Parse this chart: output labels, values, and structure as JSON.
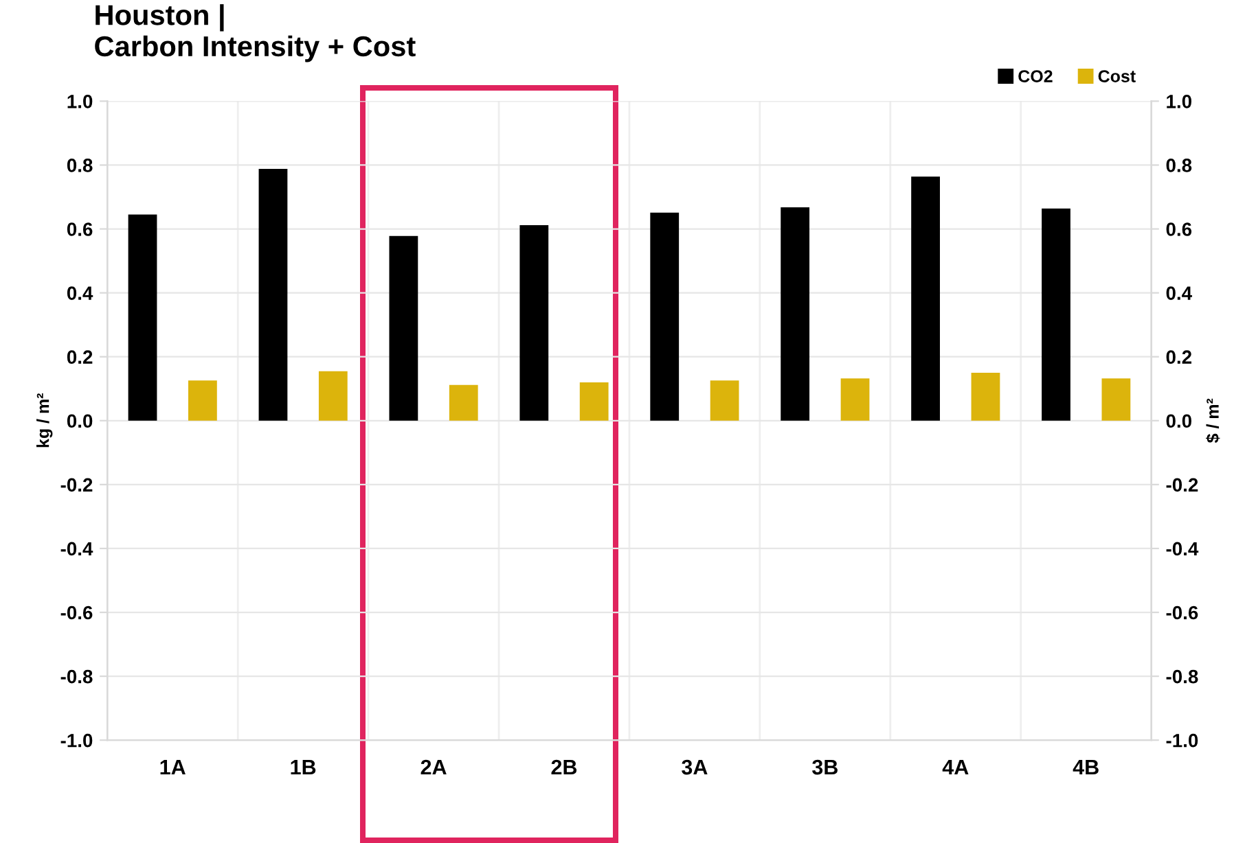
{
  "chart_data": {
    "type": "bar",
    "title": "Houston |\nCarbon Intensity + Cost",
    "ylabel": "kg / m²",
    "y2label": "$ / m²",
    "categories": [
      "1A",
      "1B",
      "2A",
      "2B",
      "3A",
      "3B",
      "4A",
      "4B"
    ],
    "series": [
      {
        "name": "CO2",
        "color": "#000000",
        "values": [
          0.645,
          0.788,
          0.578,
          0.612,
          0.651,
          0.668,
          0.764,
          0.664
        ]
      },
      {
        "name": "Cost",
        "color": "#dcb40c",
        "axis": "y2",
        "values": [
          0.126,
          0.155,
          0.112,
          0.12,
          0.126,
          0.132,
          0.15,
          0.132
        ]
      }
    ],
    "ylim": [
      -1.0,
      1.0
    ],
    "yticks": [
      {
        "value": -1,
        "label": "-1.0"
      },
      -0.8,
      -0.6,
      -0.4,
      -0.2,
      {
        "value": 0,
        "label": "0.0"
      },
      0.2,
      0.4,
      0.6,
      0.8,
      {
        "value": 1,
        "label": "1.0"
      }
    ],
    "y2lim": [
      -1.0,
      1.0
    ],
    "y2ticks": [
      {
        "value": -1,
        "label": "-1.0"
      },
      -0.8,
      -0.6,
      -0.4,
      -0.2,
      {
        "value": 0,
        "label": "0.0"
      },
      0.2,
      0.4,
      0.6,
      0.8,
      {
        "value": 1,
        "label": "1.0"
      }
    ],
    "grid": true,
    "legend": "top right"
  }
}
